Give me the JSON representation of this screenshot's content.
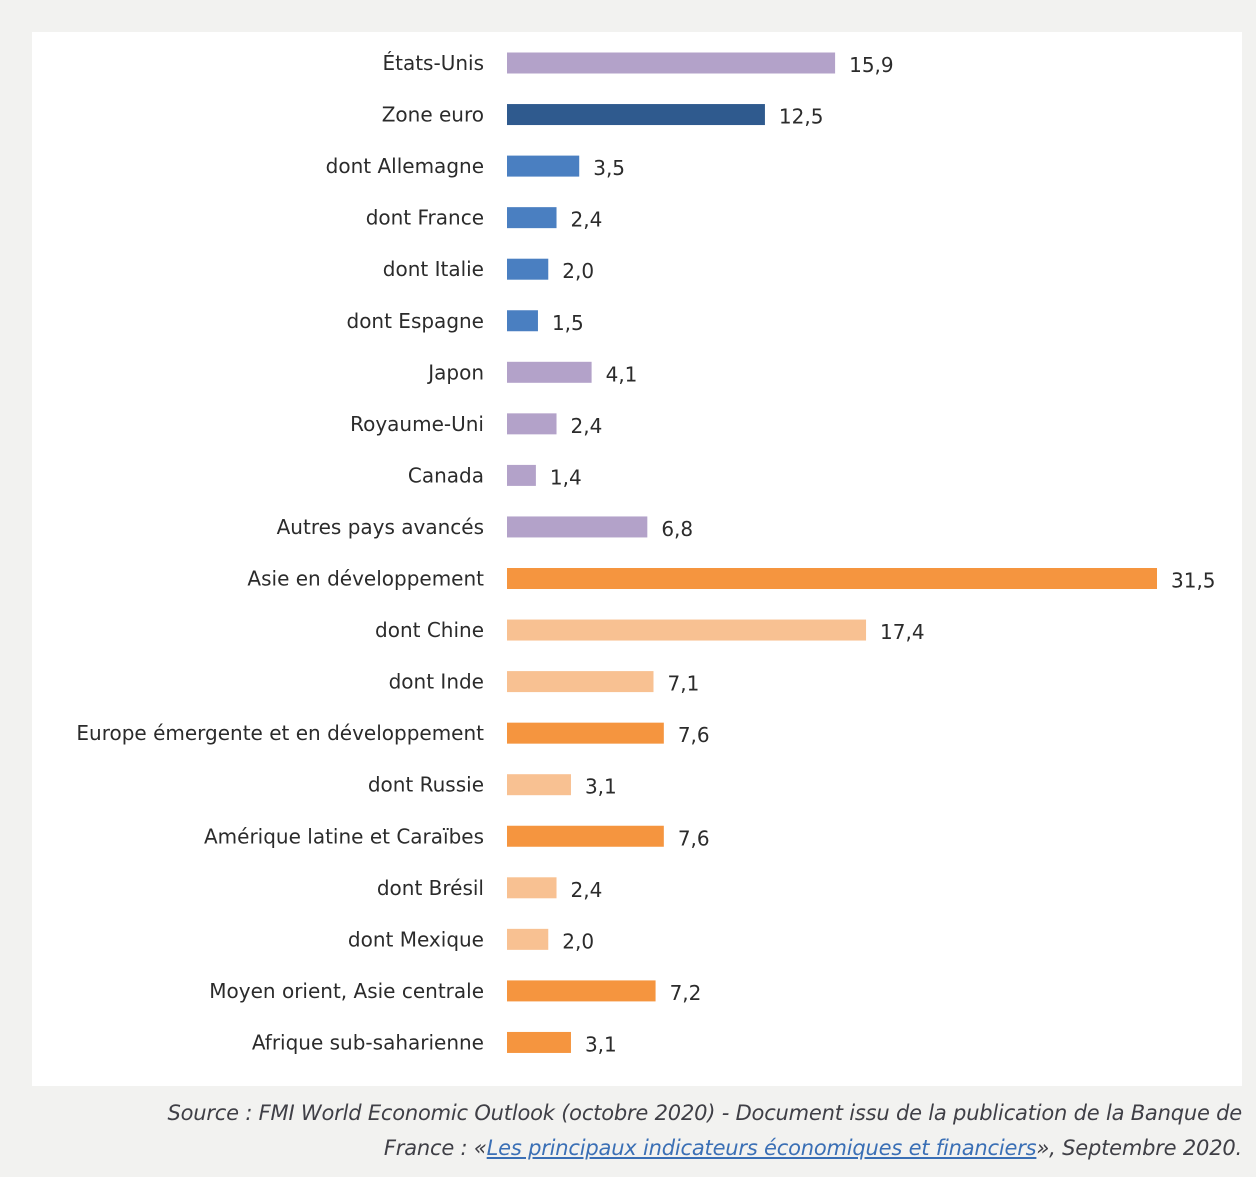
{
  "chart_data": {
    "type": "bar",
    "orientation": "horizontal",
    "categories": [
      "États-Unis",
      "Zone euro",
      "dont Allemagne",
      "dont France",
      "dont Italie",
      "dont Espagne",
      "Japon",
      "Royaume-Uni",
      "Canada",
      "Autres pays avancés",
      "Asie en développement",
      "dont Chine",
      "dont Inde",
      "Europe émergente et en développement",
      "dont Russie",
      "Amérique latine et Caraïbes",
      "dont Brésil",
      "dont Mexique",
      "Moyen orient, Asie centrale",
      "Afrique sub-saharienne"
    ],
    "values": [
      15.9,
      12.5,
      3.5,
      2.4,
      2.0,
      1.5,
      4.1,
      2.4,
      1.4,
      6.8,
      31.5,
      17.4,
      7.1,
      7.6,
      3.1,
      7.6,
      2.4,
      2.0,
      7.2,
      3.1
    ],
    "value_labels": [
      "15,9",
      "12,5",
      "3,5",
      "2,4",
      "2,0",
      "1,5",
      "4,1",
      "2,4",
      "1,4",
      "6,8",
      "31,5",
      "17,4",
      "7,1",
      "7,6",
      "3,1",
      "7,6",
      "2,4",
      "2,0",
      "7,2",
      "3,1"
    ],
    "colors": [
      "#b3a2c9",
      "#2f5a8e",
      "#4a7fc1",
      "#4a7fc1",
      "#4a7fc1",
      "#4a7fc1",
      "#b3a2c9",
      "#b3a2c9",
      "#b3a2c9",
      "#b3a2c9",
      "#f5953f",
      "#f8c192",
      "#f8c192",
      "#f5953f",
      "#f8c192",
      "#f5953f",
      "#f8c192",
      "#f8c192",
      "#f5953f",
      "#f5953f"
    ],
    "xlim": [
      0,
      31.5
    ],
    "title": "",
    "xlabel": "",
    "ylabel": "",
    "grid": false,
    "legend": "none"
  },
  "source": {
    "line1": "Source : FMI World Economic Outlook (octobre 2020) - Document issu de la publication de la Banque de",
    "line2_prefix": "France : «",
    "link_text": "Les principaux indicateurs économiques et financiers",
    "line2_suffix": "», Septembre 2020."
  }
}
